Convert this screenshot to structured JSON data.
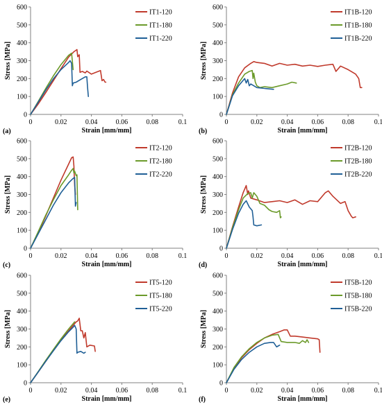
{
  "chart_data": [
    {
      "type": "line",
      "panel_label": "(a)",
      "xlabel": "Strain [mm/mm]",
      "ylabel": "Stress [MPa]",
      "xlim": [
        0,
        0.1
      ],
      "ylim": [
        0,
        600
      ],
      "x_ticks": [
        "0",
        "0.02",
        "0.04",
        "0.06",
        "0.08",
        "0.1"
      ],
      "y_ticks": [
        "0",
        "100",
        "200",
        "300",
        "400",
        "500",
        "600"
      ],
      "grid": false,
      "legend_position": "top-right",
      "series": [
        {
          "name": "IT1-120",
          "color": "#C0392B",
          "x": [
            0,
            0.005,
            0.01,
            0.015,
            0.02,
            0.025,
            0.0285,
            0.0305,
            0.031,
            0.032,
            0.0325,
            0.034,
            0.036,
            0.037,
            0.04,
            0.043,
            0.046,
            0.047,
            0.048,
            0.049,
            0.0495
          ],
          "y": [
            0,
            58,
            122,
            188,
            255,
            320,
            350,
            362,
            322,
            333,
            235,
            240,
            232,
            242,
            225,
            235,
            245,
            188,
            195,
            180,
            180
          ]
        },
        {
          "name": "IT1-180",
          "color": "#6B9A2A",
          "x": [
            0,
            0.005,
            0.01,
            0.015,
            0.02,
            0.025,
            0.027,
            0.028
          ],
          "y": [
            0,
            72,
            145,
            215,
            278,
            330,
            342,
            250
          ]
        },
        {
          "name": "IT1-220",
          "color": "#1F5F96",
          "x": [
            0,
            0.005,
            0.01,
            0.015,
            0.02,
            0.025,
            0.026,
            0.027,
            0.0275,
            0.028,
            0.03,
            0.033,
            0.036,
            0.037,
            0.0375,
            0.038
          ],
          "y": [
            0,
            68,
            136,
            198,
            250,
            290,
            300,
            285,
            160,
            175,
            180,
            195,
            210,
            210,
            150,
            100
          ]
        }
      ]
    },
    {
      "type": "line",
      "panel_label": "(b)",
      "xlabel": "Strain [mm/mm]",
      "ylabel": "Stress [MPa]",
      "xlim": [
        0,
        0.1
      ],
      "ylim": [
        0,
        600
      ],
      "x_ticks": [
        "0",
        "0.02",
        "0.04",
        "0.06",
        "0.08",
        "0.1"
      ],
      "y_ticks": [
        "0",
        "100",
        "200",
        "300",
        "400",
        "500",
        "600"
      ],
      "grid": false,
      "legend_position": "top-right",
      "series": [
        {
          "name": "IT1B-120",
          "color": "#C0392B",
          "x": [
            0,
            0.004,
            0.008,
            0.012,
            0.016,
            0.018,
            0.02,
            0.025,
            0.03,
            0.035,
            0.04,
            0.045,
            0.05,
            0.055,
            0.06,
            0.065,
            0.07,
            0.072,
            0.075,
            0.08,
            0.085,
            0.087,
            0.088,
            0.089
          ],
          "y": [
            0,
            120,
            210,
            260,
            285,
            295,
            290,
            285,
            270,
            285,
            275,
            280,
            270,
            275,
            268,
            275,
            280,
            240,
            270,
            250,
            225,
            200,
            150,
            150
          ]
        },
        {
          "name": "IT1B-180",
          "color": "#6B9A2A",
          "x": [
            0,
            0.004,
            0.008,
            0.012,
            0.015,
            0.017,
            0.0175,
            0.018,
            0.019,
            0.02,
            0.022,
            0.025,
            0.03,
            0.035,
            0.04,
            0.043,
            0.046
          ],
          "y": [
            0,
            110,
            175,
            225,
            240,
            245,
            200,
            230,
            180,
            160,
            150,
            155,
            150,
            160,
            170,
            180,
            175
          ]
        },
        {
          "name": "IT1B-220",
          "color": "#1F5F96",
          "x": [
            0,
            0.004,
            0.008,
            0.011,
            0.012,
            0.013,
            0.014,
            0.015,
            0.016,
            0.02,
            0.025,
            0.031
          ],
          "y": [
            0,
            105,
            160,
            190,
            200,
            175,
            195,
            160,
            170,
            150,
            145,
            140
          ]
        }
      ]
    },
    {
      "type": "line",
      "panel_label": "(c)",
      "xlabel": "Strain [mm/mm]",
      "ylabel": "Stress [MPa]",
      "xlim": [
        0,
        0.1
      ],
      "ylim": [
        0,
        600
      ],
      "x_ticks": [
        "0",
        "0.02",
        "0.04",
        "0.06",
        "0.08",
        "0.1"
      ],
      "y_ticks": [
        "0",
        "100",
        "200",
        "300",
        "400",
        "500",
        "600"
      ],
      "grid": false,
      "legend_position": "top-right",
      "series": [
        {
          "name": "IT2-120",
          "color": "#C0392B",
          "x": [
            0,
            0.005,
            0.01,
            0.015,
            0.02,
            0.025,
            0.027,
            0.028,
            0.0285,
            0.029,
            0.0295
          ],
          "y": [
            0,
            85,
            180,
            280,
            380,
            470,
            505,
            510,
            460,
            350,
            300
          ]
        },
        {
          "name": "IT2-180",
          "color": "#6B9A2A",
          "x": [
            0,
            0.005,
            0.01,
            0.015,
            0.02,
            0.025,
            0.027,
            0.028,
            0.0285,
            0.029,
            0.03,
            0.0305,
            0.031
          ],
          "y": [
            0,
            92,
            185,
            270,
            350,
            410,
            435,
            445,
            420,
            430,
            405,
            410,
            215
          ]
        },
        {
          "name": "IT2-220",
          "color": "#1F5F96",
          "x": [
            0,
            0.005,
            0.01,
            0.015,
            0.02,
            0.025,
            0.028,
            0.029,
            0.0295,
            0.03
          ],
          "y": [
            0,
            80,
            160,
            240,
            310,
            365,
            390,
            395,
            235,
            255
          ]
        }
      ]
    },
    {
      "type": "line",
      "panel_label": "(d)",
      "xlabel": "Strain [mm/mm]",
      "ylabel": "Stress [MPa]",
      "xlim": [
        0,
        0.1
      ],
      "ylim": [
        0,
        600
      ],
      "x_ticks": [
        "0",
        "0.02",
        "0.04",
        "0.06",
        "0.08",
        "0.1"
      ],
      "y_ticks": [
        "0",
        "100",
        "200",
        "300",
        "400",
        "500",
        "600"
      ],
      "grid": false,
      "legend_position": "top-right",
      "series": [
        {
          "name": "IT2B-120",
          "color": "#C0392B",
          "x": [
            0,
            0.004,
            0.008,
            0.011,
            0.013,
            0.014,
            0.0145,
            0.016,
            0.02,
            0.025,
            0.03,
            0.035,
            0.04,
            0.045,
            0.05,
            0.055,
            0.06,
            0.065,
            0.067,
            0.07,
            0.075,
            0.078,
            0.08,
            0.082,
            0.083,
            0.085
          ],
          "y": [
            0,
            120,
            230,
            310,
            350,
            300,
            320,
            280,
            270,
            255,
            260,
            265,
            255,
            270,
            245,
            265,
            260,
            310,
            320,
            290,
            250,
            260,
            210,
            180,
            170,
            175
          ]
        },
        {
          "name": "IT2B-180",
          "color": "#6B9A2A",
          "x": [
            0,
            0.004,
            0.008,
            0.011,
            0.014,
            0.016,
            0.017,
            0.018,
            0.02,
            0.022,
            0.025,
            0.028,
            0.03,
            0.033,
            0.035,
            0.0355,
            0.036
          ],
          "y": [
            0,
            115,
            215,
            280,
            305,
            310,
            280,
            310,
            290,
            250,
            240,
            215,
            205,
            200,
            210,
            170,
            175
          ]
        },
        {
          "name": "IT2B-220",
          "color": "#1F5F96",
          "x": [
            0,
            0.004,
            0.008,
            0.011,
            0.013,
            0.015,
            0.017,
            0.0175,
            0.018,
            0.02,
            0.023
          ],
          "y": [
            0,
            105,
            195,
            245,
            265,
            230,
            210,
            175,
            130,
            125,
            130
          ]
        }
      ]
    },
    {
      "type": "line",
      "panel_label": "(e)",
      "xlabel": "Strain [mm/mm]",
      "ylabel": "Stress [MPa]",
      "xlim": [
        0,
        0.1
      ],
      "ylim": [
        0,
        600
      ],
      "x_ticks": [
        "0",
        "0.02",
        "0.04",
        "0.06",
        "0.08",
        "0.1"
      ],
      "y_ticks": [
        "0",
        "100",
        "200",
        "300",
        "400",
        "500",
        "600"
      ],
      "grid": false,
      "legend_position": "top-right",
      "series": [
        {
          "name": "IT5-120",
          "color": "#C0392B",
          "x": [
            0,
            0.005,
            0.01,
            0.015,
            0.02,
            0.025,
            0.028,
            0.03,
            0.031,
            0.032,
            0.033,
            0.034,
            0.035,
            0.036,
            0.037,
            0.039,
            0.042,
            0.0425
          ],
          "y": [
            0,
            60,
            120,
            180,
            240,
            290,
            320,
            340,
            345,
            360,
            290,
            290,
            250,
            280,
            200,
            210,
            205,
            175
          ]
        },
        {
          "name": "IT5-180",
          "color": "#6B9A2A",
          "x": [
            0,
            0.005,
            0.01,
            0.015,
            0.02,
            0.025,
            0.028,
            0.029
          ],
          "y": [
            0,
            62,
            125,
            185,
            245,
            300,
            330,
            340
          ]
        },
        {
          "name": "IT5-220",
          "color": "#1F5F96",
          "x": [
            0,
            0.005,
            0.01,
            0.015,
            0.02,
            0.025,
            0.028,
            0.029,
            0.03,
            0.0305,
            0.031,
            0.033,
            0.035,
            0.036
          ],
          "y": [
            0,
            60,
            120,
            178,
            235,
            285,
            310,
            320,
            300,
            165,
            170,
            175,
            165,
            170
          ]
        }
      ]
    },
    {
      "type": "line",
      "panel_label": "(f)",
      "xlabel": "Strain [mm/mm]",
      "ylabel": "Stress [MPa]",
      "xlim": [
        0,
        0.1
      ],
      "ylim": [
        0,
        600
      ],
      "x_ticks": [
        "0",
        "0.02",
        "0.04",
        "0.06",
        "0.08",
        "0.1"
      ],
      "y_ticks": [
        "0",
        "100",
        "200",
        "300",
        "400",
        "500",
        "600"
      ],
      "grid": false,
      "legend_position": "top-right",
      "series": [
        {
          "name": "IT5B-120",
          "color": "#C0392B",
          "x": [
            0,
            0.005,
            0.01,
            0.015,
            0.02,
            0.025,
            0.03,
            0.035,
            0.038,
            0.04,
            0.042,
            0.045,
            0.05,
            0.055,
            0.06,
            0.061,
            0.0615
          ],
          "y": [
            0,
            80,
            140,
            185,
            220,
            250,
            270,
            285,
            295,
            295,
            260,
            260,
            255,
            250,
            245,
            240,
            170
          ]
        },
        {
          "name": "IT5B-180",
          "color": "#6B9A2A",
          "x": [
            0,
            0.005,
            0.01,
            0.015,
            0.02,
            0.025,
            0.03,
            0.034,
            0.036,
            0.04,
            0.045,
            0.048,
            0.05,
            0.052,
            0.053,
            0.054
          ],
          "y": [
            0,
            85,
            145,
            190,
            225,
            250,
            265,
            270,
            230,
            225,
            225,
            220,
            235,
            225,
            240,
            225
          ]
        },
        {
          "name": "IT5B-220",
          "color": "#1F5F96",
          "x": [
            0,
            0.005,
            0.01,
            0.015,
            0.02,
            0.025,
            0.029,
            0.031,
            0.033,
            0.034,
            0.035
          ],
          "y": [
            0,
            75,
            130,
            170,
            200,
            220,
            225,
            225,
            200,
            205,
            210
          ]
        }
      ]
    }
  ]
}
